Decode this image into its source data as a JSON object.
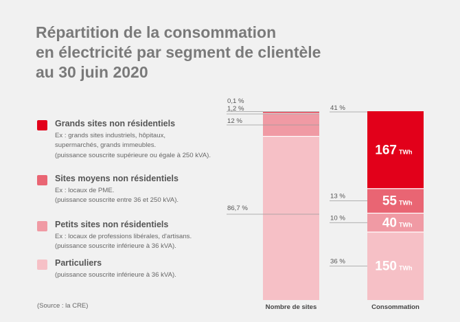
{
  "title": {
    "lines": [
      "Répartition de la consommation",
      "en électricité par segment de clientèle",
      "au 30 juin 2020"
    ]
  },
  "legend": [
    {
      "name": "Grands sites non résidentiels",
      "color": "#e2001a",
      "desc": [
        "Ex : grands sites industriels, hôpitaux,",
        "supermarchés, grands immeubles.",
        "(puissance souscrite supérieure ou égale à 250 kVA)."
      ]
    },
    {
      "name": "Sites moyens non résidentiels",
      "color": "#e96573",
      "desc": [
        "Ex : locaux de PME.",
        "(puissance souscrite entre 36 et 250 kVA)."
      ]
    },
    {
      "name": "Petits sites non résidentiels",
      "color": "#f09aa4",
      "desc": [
        "Ex : locaux de professions libérales, d'artisans.",
        "(puissance souscrite inférieure à 36 kVA)."
      ]
    },
    {
      "name": "Particuliers",
      "color": "#f6c0c6",
      "desc": [
        "(puissance souscrite inférieure à 36 kVA)."
      ]
    }
  ],
  "source": "(Source : la CRE)",
  "chart_data": {
    "type": "bar",
    "stacked": true,
    "normalized_percent": true,
    "categories": [
      "Nombre de sites",
      "Consommation"
    ],
    "segments": [
      "Grands sites non résidentiels",
      "Sites moyens non résidentiels",
      "Petits sites non résidentiels",
      "Particuliers"
    ],
    "series": [
      {
        "name": "Grands sites non résidentiels",
        "color": "#e2001a",
        "values": [
          0.1,
          41
        ],
        "labels": [
          "0,1 %",
          "41 %"
        ],
        "value_label": {
          "number": "167",
          "unit": "TWh"
        }
      },
      {
        "name": "Sites moyens non résidentiels",
        "color": "#e96573",
        "values": [
          1.2,
          13
        ],
        "labels": [
          "1,2 %",
          "13 %"
        ],
        "value_label": {
          "number": "55",
          "unit": "TWh"
        }
      },
      {
        "name": "Petits sites non résidentiels",
        "color": "#f09aa4",
        "values": [
          12,
          10
        ],
        "labels": [
          "12 %",
          "10 %"
        ],
        "value_label": {
          "number": "40",
          "unit": "TWh"
        }
      },
      {
        "name": "Particuliers",
        "color": "#f6c0c6",
        "values": [
          86.7,
          36
        ],
        "labels": [
          "86,7 %",
          "36 %"
        ],
        "value_label": {
          "number": "150",
          "unit": "TWh"
        }
      }
    ],
    "ylim": [
      0,
      100
    ],
    "grid": false,
    "legend": "left"
  }
}
